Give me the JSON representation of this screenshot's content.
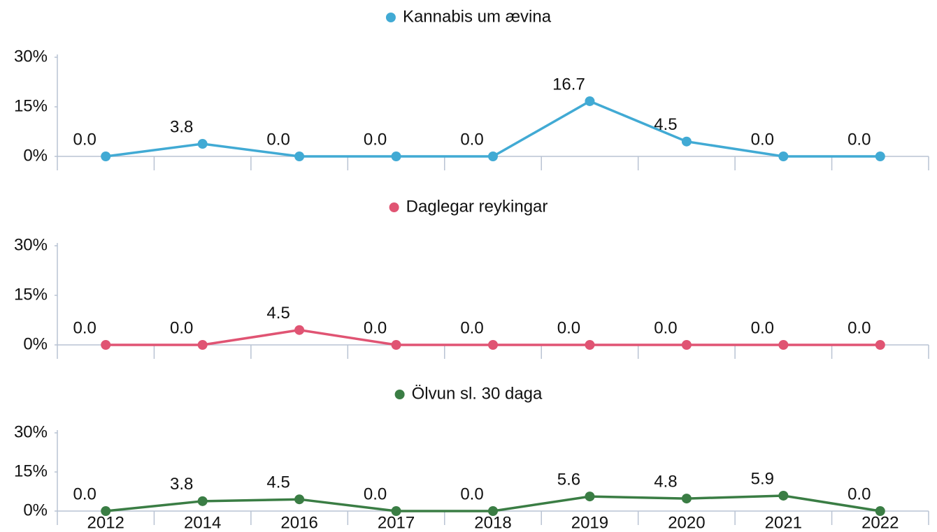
{
  "chart_data": [
    {
      "type": "line",
      "ylim": [
        0,
        30
      ],
      "yticks": [
        {
          "value": 0,
          "label": "0%"
        },
        {
          "value": 15,
          "label": "15%"
        },
        {
          "value": 30,
          "label": "30%"
        }
      ],
      "series": [
        {
          "name": "Kannabis um ævina",
          "color": "#41aad4",
          "values": [
            0,
            3.8,
            0,
            0,
            0,
            16.7,
            4.5,
            0,
            0
          ],
          "value_labels": [
            "0.0",
            "3.8",
            "0.0",
            "0.0",
            "0.0",
            "16.7",
            "4.5",
            "0.0",
            "0.0"
          ]
        }
      ]
    },
    {
      "type": "line",
      "ylim": [
        0,
        30
      ],
      "yticks": [
        {
          "value": 0,
          "label": "0%"
        },
        {
          "value": 15,
          "label": "15%"
        },
        {
          "value": 30,
          "label": "30%"
        }
      ],
      "series": [
        {
          "name": "Daglegar reykingar",
          "color": "#e05473",
          "values": [
            0,
            0,
            4.5,
            0,
            0,
            0,
            0,
            0,
            0
          ],
          "value_labels": [
            "0.0",
            "0.0",
            "4.5",
            "0.0",
            "0.0",
            "0.0",
            "0.0",
            "0.0",
            "0.0"
          ]
        }
      ]
    },
    {
      "type": "line",
      "ylim": [
        0,
        30
      ],
      "yticks": [
        {
          "value": 0,
          "label": "0%"
        },
        {
          "value": 15,
          "label": "15%"
        },
        {
          "value": 30,
          "label": "30%"
        }
      ],
      "categories": [
        "2012",
        "2014",
        "2016",
        "2017",
        "2018",
        "2019",
        "2020",
        "2021",
        "2022"
      ],
      "series": [
        {
          "name": "Ölvun sl. 30 daga",
          "color": "#3a7d44",
          "values": [
            0,
            3.8,
            4.5,
            0,
            0,
            5.6,
            4.8,
            5.9,
            0
          ],
          "value_labels": [
            "0.0",
            "3.8",
            "4.5",
            "0.0",
            "0.0",
            "5.6",
            "4.8",
            "5.9",
            "0.0"
          ]
        }
      ]
    }
  ]
}
